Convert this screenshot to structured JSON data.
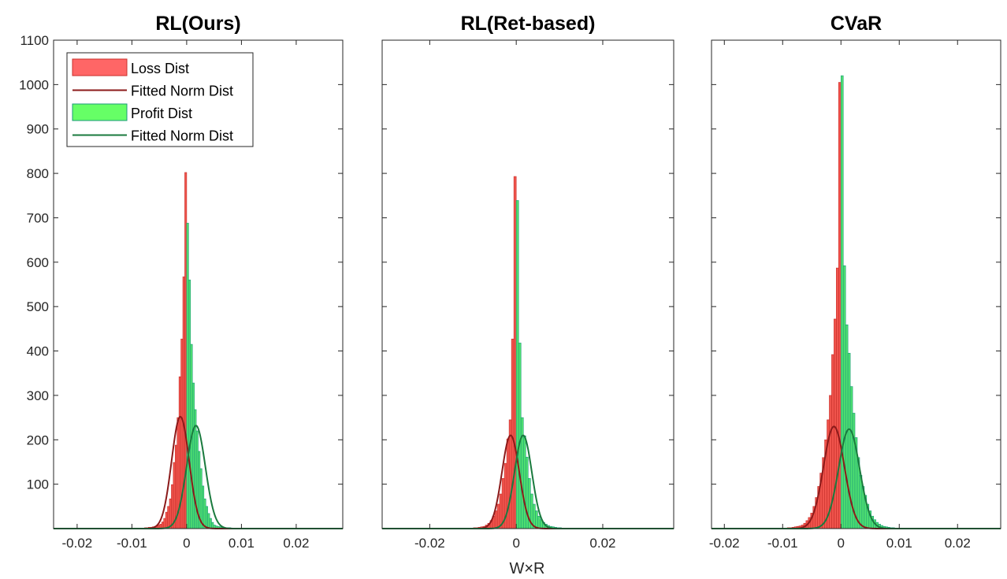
{
  "chart_data": {
    "type": "bar",
    "xlabel": "W×R",
    "ylabel": "",
    "ylim": [
      0,
      1100
    ],
    "yticks": [
      100,
      200,
      300,
      400,
      500,
      600,
      700,
      800,
      900,
      1000,
      1100
    ],
    "legend": {
      "placement": "top-left",
      "entries": [
        "Loss Dist",
        "Fitted Norm Dist",
        "Profit Dist",
        "Fitted Norm Dist"
      ]
    },
    "colors": {
      "loss_fill": "#f0544c",
      "loss_edge": "#c8302c",
      "loss_fit": "#8b1a1a",
      "profit_fill": "#4fe070",
      "profit_edge": "#1a9a78",
      "profit_fit": "#1a7a3e"
    },
    "panels": [
      {
        "title": "RL(Ours)",
        "xlim": [
          -0.0243,
          0.0285
        ],
        "xticks": [
          -0.02,
          -0.01,
          0,
          0.01,
          0.02
        ],
        "xtick_labels": [
          "-0.02",
          "-0.01",
          "0",
          "0.01",
          "0.02"
        ],
        "show_yticklabels": true,
        "bin_width": 0.00035,
        "loss_counts_outward_from_zero": [
          802,
          567,
          427,
          342,
          250,
          188,
          149,
          99,
          67,
          50,
          37,
          23,
          15,
          10,
          8,
          6,
          5,
          4,
          3,
          3,
          2,
          2,
          1,
          1,
          1,
          0,
          1,
          0,
          0,
          1,
          0,
          0,
          0,
          0,
          0,
          0,
          1
        ],
        "profit_counts_outward_from_zero": [
          688,
          560,
          415,
          328,
          268,
          220,
          174,
          135,
          96,
          67,
          50,
          34,
          23,
          14,
          8,
          6,
          5,
          4,
          3,
          3,
          2,
          2,
          2,
          1,
          1,
          1,
          1,
          0,
          1,
          0,
          1,
          0,
          0,
          1
        ],
        "loss_fit": {
          "mu": -0.00115,
          "sigma": 0.0016,
          "peak": 252
        },
        "profit_fit": {
          "mu": 0.0017,
          "sigma": 0.0017,
          "peak": 232
        }
      },
      {
        "title": "RL(Ret-based)",
        "xlim": [
          -0.031,
          0.0364
        ],
        "xticks": [
          -0.02,
          0,
          0.02
        ],
        "xtick_labels": [
          "-0.02",
          "0",
          "0.02"
        ],
        "show_yticklabels": false,
        "bin_width": 0.00055,
        "loss_counts_outward_from_zero": [
          793,
          427,
          245,
          202,
          147,
          113,
          78,
          55,
          40,
          28,
          18,
          12,
          8,
          5,
          4,
          3,
          2,
          2,
          1,
          1,
          1,
          0,
          1
        ],
        "profit_counts_outward_from_zero": [
          739,
          418,
          250,
          209,
          161,
          113,
          78,
          55,
          40,
          28,
          20,
          14,
          10,
          7,
          5,
          4,
          3,
          2,
          2,
          1,
          1,
          1,
          0,
          1
        ],
        "loss_fit": {
          "mu": -0.0013,
          "sigma": 0.002,
          "peak": 210
        },
        "profit_fit": {
          "mu": 0.0016,
          "sigma": 0.002,
          "peak": 210
        }
      },
      {
        "title": "CVaR",
        "xlim": [
          -0.0222,
          0.0274
        ],
        "xticks": [
          -0.02,
          -0.01,
          0,
          0.01,
          0.02
        ],
        "xtick_labels": [
          "-0.02",
          "-0.01",
          "0",
          "0.01",
          "0.02"
        ],
        "show_yticklabels": false,
        "bin_width": 0.0004,
        "loss_counts_outward_from_zero": [
          1005,
          587,
          472,
          392,
          300,
          245,
          200,
          160,
          125,
          95,
          70,
          50,
          35,
          25,
          18,
          12,
          8,
          6,
          5,
          4,
          3,
          2,
          2,
          1,
          1,
          0,
          1,
          0,
          0,
          1
        ],
        "profit_counts_outward_from_zero": [
          1020,
          592,
          459,
          395,
          320,
          260,
          205,
          160,
          120,
          95,
          75,
          55,
          40,
          28,
          20,
          14,
          10,
          7,
          5,
          4,
          3,
          2,
          2,
          1,
          1,
          1,
          0,
          1,
          0,
          1
        ],
        "loss_fit": {
          "mu": -0.0012,
          "sigma": 0.0018,
          "peak": 230
        },
        "profit_fit": {
          "mu": 0.0014,
          "sigma": 0.0018,
          "peak": 224
        }
      }
    ]
  }
}
